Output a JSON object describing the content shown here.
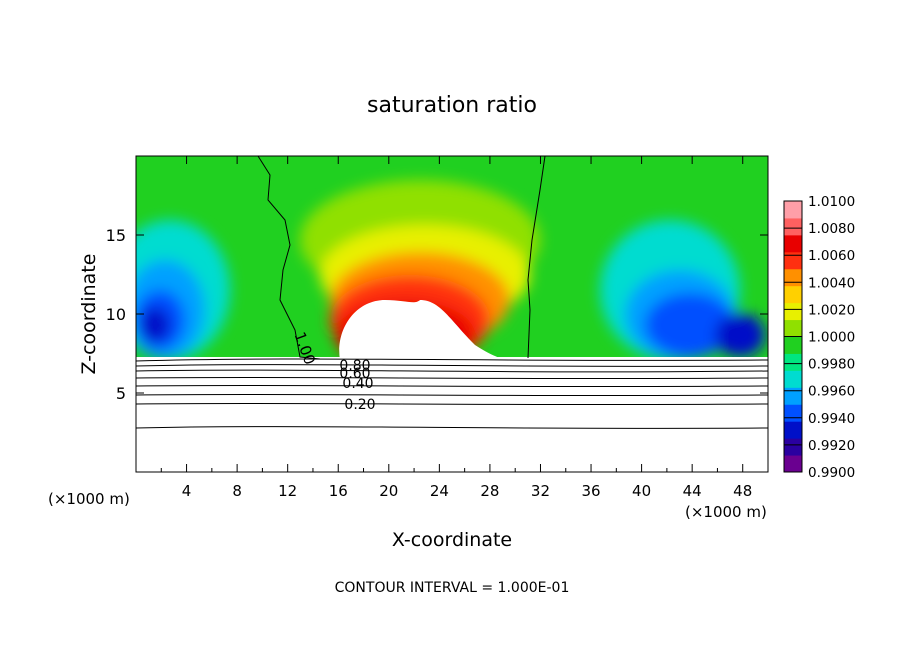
{
  "chart_data": {
    "type": "heatmap",
    "title": "saturation ratio",
    "xlabel": "X-coordinate",
    "ylabel": "Z-coordinate",
    "x_unit": "(×1000 m)",
    "xlim": [
      0,
      50
    ],
    "ylim": [
      0,
      20
    ],
    "x_ticks": [
      4,
      8,
      12,
      16,
      20,
      24,
      28,
      32,
      36,
      40,
      44,
      48
    ],
    "y_ticks": [
      5,
      10,
      15
    ],
    "colorbar": {
      "min": 0.99,
      "max": 1.01,
      "labels": [
        "1.0100",
        "1.0080",
        "1.0060",
        "1.0040",
        "1.0020",
        "1.0000",
        "0.9980",
        "0.9960",
        "0.9940",
        "0.9920",
        "0.9900"
      ],
      "colors": [
        "#6a0090",
        "#2a00a0",
        "#0010c8",
        "#0050ff",
        "#00a0ff",
        "#00dcd0",
        "#00e680",
        "#20d020",
        "#90e000",
        "#e8f000",
        "#ffd000",
        "#ff9000",
        "#ff3010",
        "#e80000",
        "#ff6060",
        "#ff9fa8"
      ]
    },
    "contour_labels": [
      "1.00",
      "0.80",
      "0.60",
      "0.40",
      "0.20"
    ],
    "contour_levels_below_cloud": [
      0.2,
      0.3,
      0.4,
      0.5,
      0.6,
      0.7,
      0.8,
      0.9
    ],
    "footer": "CONTOUR INTERVAL = 1.000E-01"
  }
}
